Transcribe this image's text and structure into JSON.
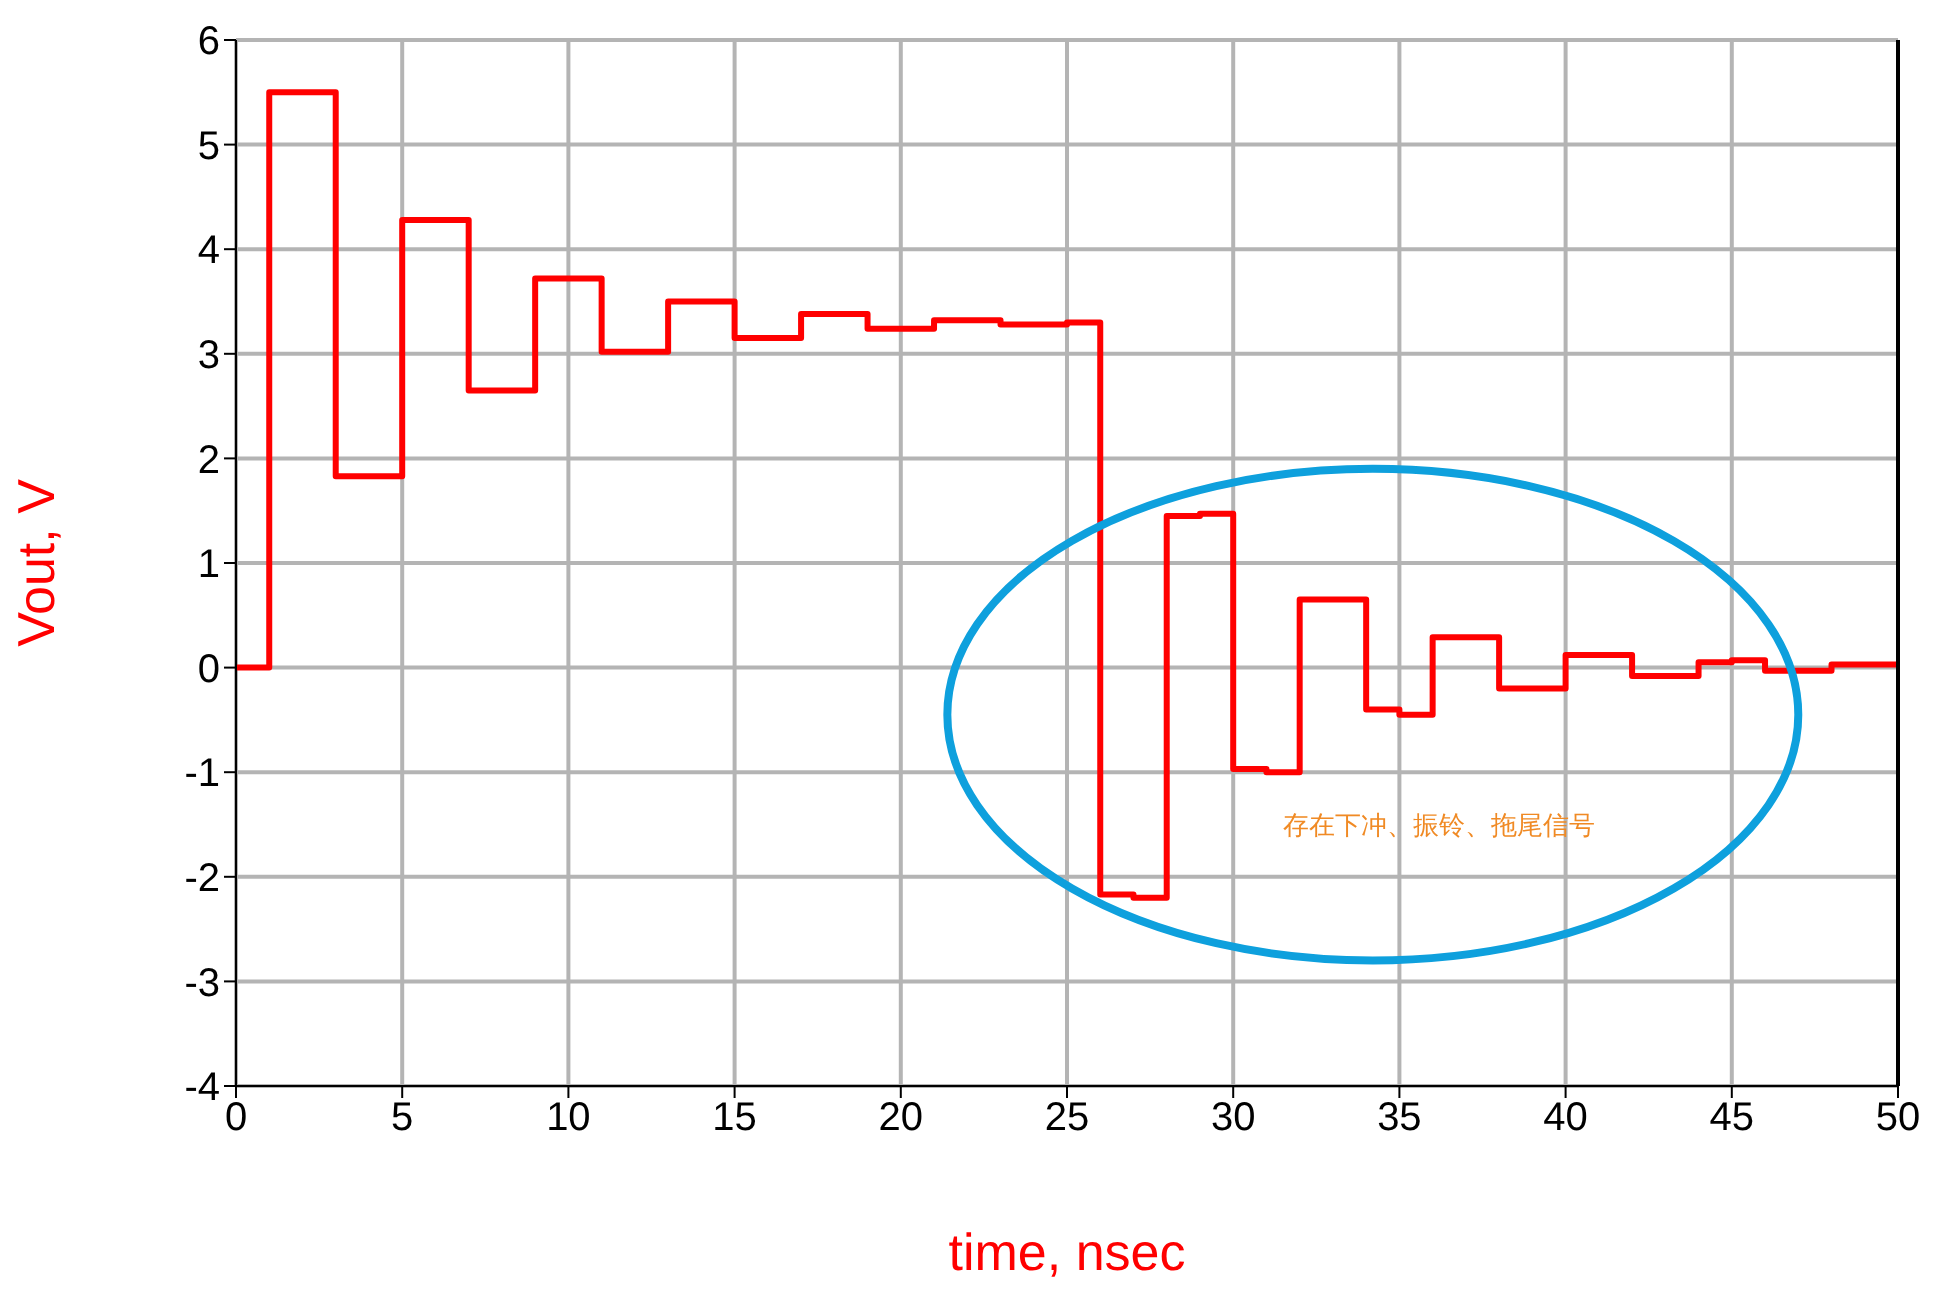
{
  "chart_data": {
    "type": "step",
    "xlabel": "time, nsec",
    "ylabel": "Vout, V",
    "x": [
      0,
      1,
      3,
      5,
      7,
      9,
      11,
      13,
      15,
      17,
      19,
      21,
      23,
      25,
      26,
      27,
      28,
      29,
      30,
      31,
      32,
      34,
      35,
      36,
      38,
      40,
      42,
      44,
      45,
      46,
      48,
      50
    ],
    "series": [
      {
        "color": "#ff0000",
        "values": [
          0,
          5.5,
          1.83,
          4.28,
          2.65,
          3.72,
          3.02,
          3.5,
          3.15,
          3.38,
          3.24,
          3.32,
          3.28,
          3.3,
          -2.17,
          -2.2,
          1.45,
          1.47,
          -0.97,
          -1.0,
          0.65,
          -0.4,
          -0.45,
          0.29,
          -0.2,
          0.12,
          -0.08,
          0.05,
          0.07,
          -0.03,
          0.03,
          0.03
        ]
      }
    ],
    "xlim": [
      0,
      50
    ],
    "xticks": [
      0,
      5,
      10,
      15,
      20,
      25,
      30,
      35,
      40,
      45,
      50
    ],
    "ylim": [
      -4,
      6
    ],
    "yticks": [
      -4,
      -3,
      -2,
      -1,
      0,
      1,
      2,
      3,
      4,
      5,
      6
    ],
    "grid": true,
    "marker": "none",
    "line_style": "solid",
    "annotations": [
      "存在下冲、振铃、拖尾信号"
    ]
  }
}
